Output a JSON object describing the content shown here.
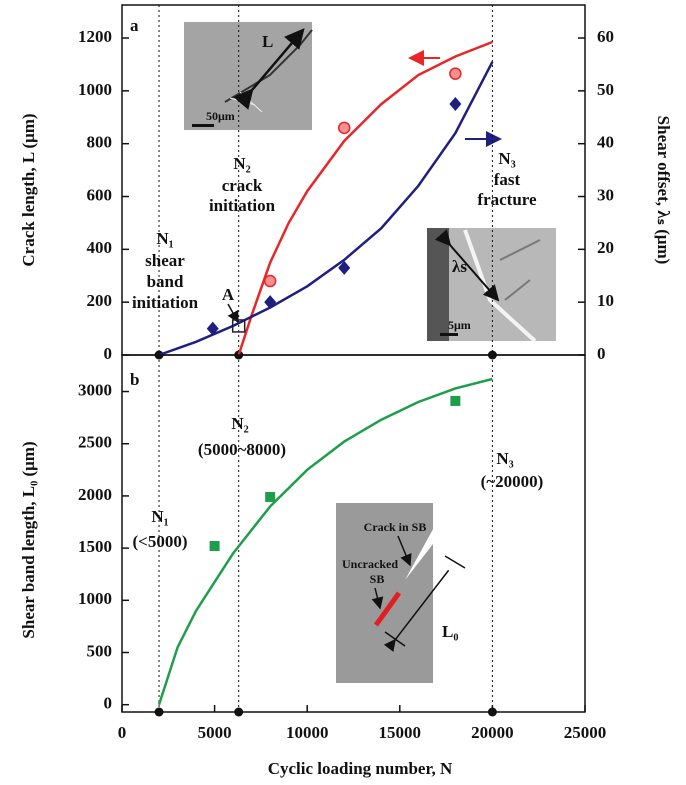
{
  "chart_data": [
    {
      "type": "line",
      "ylabel": "Crack length, L (μm)",
      "y2label": "Shear offset, λₛ (μm)",
      "xlim": [
        0,
        25000
      ],
      "ylim": [
        0,
        1325
      ],
      "yticks": [
        0,
        200,
        400,
        600,
        800,
        1000,
        1200
      ],
      "y2lim": [
        0,
        66.25
      ],
      "y2ticks": [
        0,
        10,
        20,
        30,
        40,
        50,
        60
      ],
      "vlines": [
        2000,
        6300,
        20000
      ],
      "series": [
        {
          "style": "line",
          "color": "#e8262a",
          "x": [
            6300,
            7000,
            8000,
            9000,
            10000,
            12000,
            14000,
            16000,
            18000,
            20000
          ],
          "values": [
            0,
            150,
            350,
            500,
            620,
            810,
            950,
            1060,
            1130,
            1185
          ]
        },
        {
          "style": "line",
          "color": "#1f1f80",
          "axis": "y2",
          "x": [
            2000,
            4000,
            6000,
            8000,
            10000,
            12000,
            14000,
            16000,
            18000,
            20000
          ],
          "values": [
            0,
            2.5,
            5.5,
            9,
            13,
            18,
            24,
            32,
            42,
            55.5
          ]
        },
        {
          "marker": "circle",
          "color": "#e8262a",
          "x": [
            8000,
            12000,
            18000
          ],
          "values": [
            280,
            860,
            1065
          ]
        },
        {
          "marker": "diamond",
          "color": "#1f1f80",
          "axis": "y2",
          "x": [
            4900,
            8000,
            12000,
            18000
          ],
          "values": [
            5,
            10,
            16.5,
            47.5
          ]
        },
        {
          "marker": "open-square",
          "color": "#222222",
          "axis": "y2",
          "x": [
            6300
          ],
          "values": [
            5.5
          ]
        }
      ],
      "annotations": [
        "a",
        "N₁",
        "shear",
        "band",
        "initiation",
        "N₂",
        "crack",
        "initiation",
        "N₃",
        "fast",
        "fracture",
        "A"
      ],
      "insets": [
        "L",
        "50μm",
        "λs",
        "5μm"
      ]
    },
    {
      "type": "line",
      "ylabel": "Shear band length, L₀ (μm)",
      "xlabel": "Cyclic loading number, N",
      "xlim": [
        0,
        25000
      ],
      "xticks": [
        0,
        5000,
        10000,
        15000,
        20000,
        25000
      ],
      "ylim": [
        -70,
        3350
      ],
      "yticks": [
        0,
        500,
        1000,
        1500,
        2000,
        2500,
        3000
      ],
      "vlines": [
        2000,
        6300,
        20000
      ],
      "series": [
        {
          "style": "line",
          "color": "#1e9e4a",
          "x": [
            2000,
            3000,
            4000,
            6000,
            8000,
            10000,
            12000,
            14000,
            16000,
            18000,
            20000
          ],
          "values": [
            0,
            550,
            900,
            1450,
            1900,
            2250,
            2520,
            2730,
            2900,
            3030,
            3120
          ]
        },
        {
          "marker": "square",
          "color": "#1e9e4a",
          "x": [
            5000,
            8000,
            18000
          ],
          "values": [
            1520,
            1990,
            2910
          ]
        }
      ],
      "annotations": [
        "b",
        "N₂",
        "(5000~8000)",
        "N₃",
        "(~20000)",
        "N₁",
        "(<5000)"
      ],
      "insets": [
        "Crack in SB",
        "Uncracked",
        "SB",
        "L₀"
      ]
    }
  ]
}
